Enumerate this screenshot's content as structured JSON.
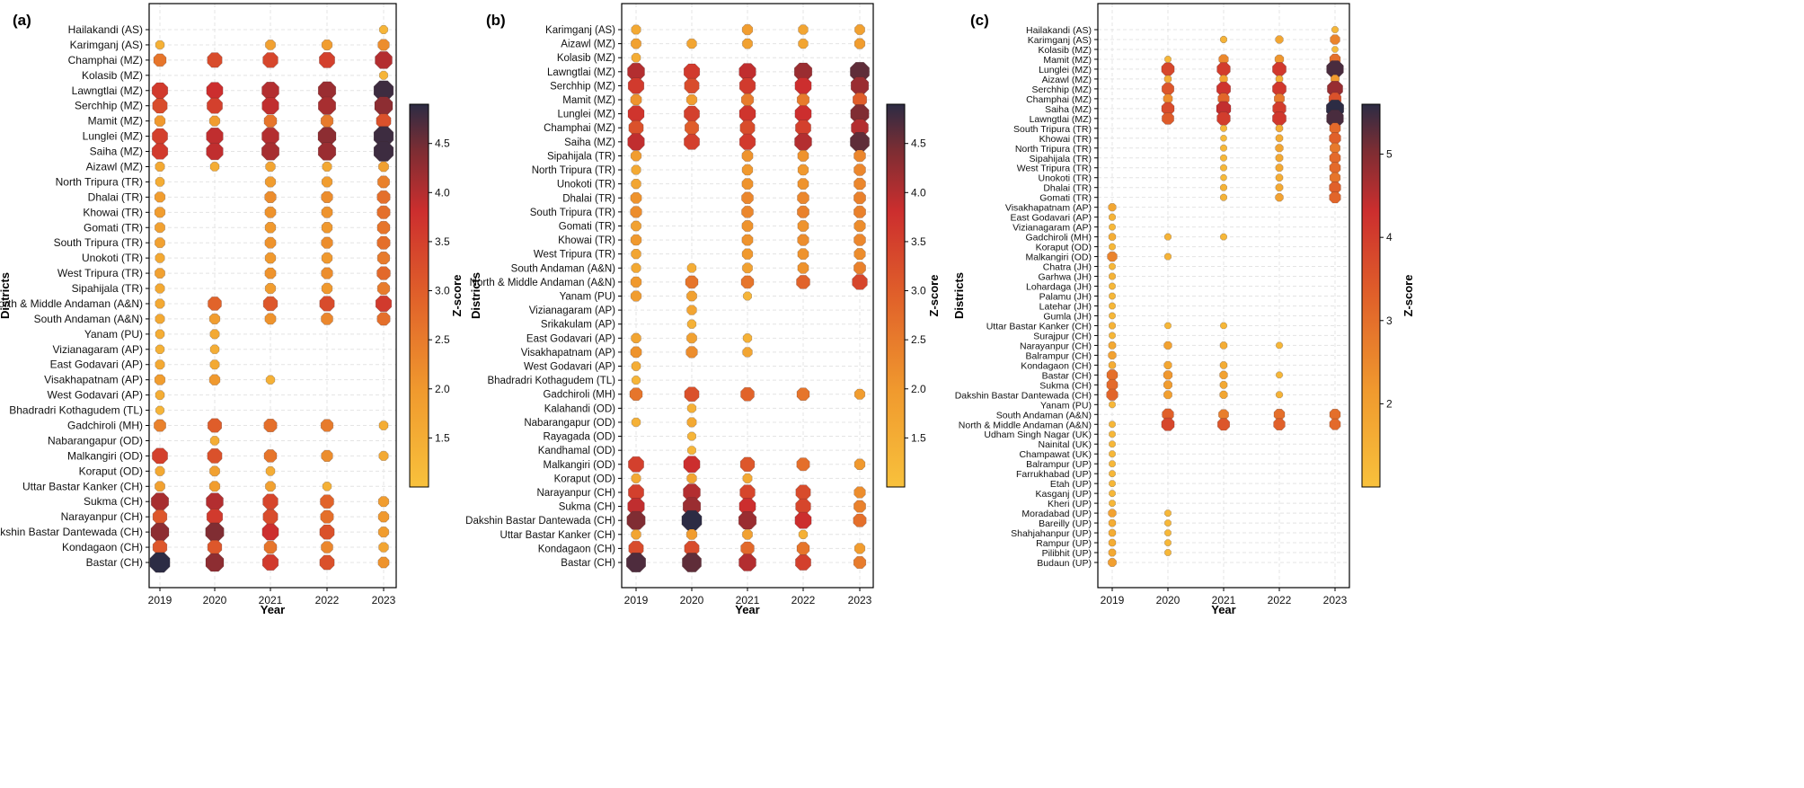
{
  "chart_data": [
    {
      "type": "scatter",
      "panel_label": "(a)",
      "xlabel": "Year",
      "ylabel": "Districts",
      "colorbar_label": "Z-score",
      "x": [
        "2019",
        "2020",
        "2021",
        "2022",
        "2023"
      ],
      "color_range": [
        1.0,
        4.9
      ],
      "colorbar_ticks": [
        "1.5",
        "2.0",
        "2.5",
        "3.0",
        "3.5",
        "4.0",
        "4.5"
      ],
      "districts": [
        "Hailakandi (AS)",
        "Karimganj (AS)",
        "Champhai (MZ)",
        "Kolasib (MZ)",
        "Lawngtlai (MZ)",
        "Serchhip (MZ)",
        "Mamit (MZ)",
        "Lunglei (MZ)",
        "Saiha (MZ)",
        "Aizawl (MZ)",
        "North Tripura (TR)",
        "Dhalai (TR)",
        "Khowai (TR)",
        "Gomati (TR)",
        "South Tripura (TR)",
        "Unokoti (TR)",
        "West Tripura (TR)",
        "Sipahijala (TR)",
        "North  & Middle Andaman (A&N)",
        "South Andaman (A&N)",
        "Yanam (PU)",
        "Vizianagaram (AP)",
        "East Godavari (AP)",
        "Visakhapatnam (AP)",
        "West Godavari (AP)",
        "Bhadradri Kothagudem (TL)",
        "Gadchiroli (MH)",
        "Nabarangapur (OD)",
        "Malkangiri (OD)",
        "Koraput (OD)",
        "Uttar Bastar Kanker (CH)",
        "Sukma (CH)",
        "Narayanpur (CH)",
        "Dakshin Bastar Dantewada (CH)",
        "Kondagaon (CH)",
        "Bastar (CH)"
      ],
      "z": [
        [
          null,
          null,
          null,
          null,
          1.3
        ],
        [
          1.4,
          null,
          1.8,
          1.9,
          2.2
        ],
        [
          2.6,
          3.3,
          3.4,
          3.5,
          4.0
        ],
        [
          null,
          null,
          null,
          null,
          1.3
        ],
        [
          3.6,
          3.8,
          4.0,
          4.2,
          4.8
        ],
        [
          3.3,
          3.5,
          3.9,
          4.1,
          4.3
        ],
        [
          2.0,
          1.9,
          2.6,
          2.5,
          3.2
        ],
        [
          3.5,
          3.9,
          4.0,
          4.3,
          4.8
        ],
        [
          3.6,
          3.9,
          4.1,
          4.2,
          4.8
        ],
        [
          1.6,
          1.5,
          1.7,
          1.6,
          1.8
        ],
        [
          1.5,
          null,
          1.9,
          1.9,
          2.4
        ],
        [
          1.9,
          null,
          2.2,
          2.2,
          2.7
        ],
        [
          1.9,
          null,
          2.1,
          2.1,
          2.7
        ],
        [
          1.8,
          null,
          2.0,
          2.0,
          2.6
        ],
        [
          1.8,
          null,
          2.1,
          2.2,
          2.7
        ],
        [
          1.6,
          null,
          2.0,
          2.0,
          2.5
        ],
        [
          1.8,
          null,
          2.1,
          2.2,
          2.8
        ],
        [
          1.6,
          null,
          1.9,
          2.0,
          2.5
        ],
        [
          1.6,
          2.9,
          3.1,
          3.3,
          3.6
        ],
        [
          1.6,
          1.9,
          2.1,
          2.3,
          2.7
        ],
        [
          1.5,
          1.6,
          null,
          null,
          null
        ],
        [
          1.4,
          1.5,
          null,
          null,
          null
        ],
        [
          1.6,
          1.6,
          null,
          null,
          null
        ],
        [
          1.9,
          2.0,
          1.4,
          null,
          null
        ],
        [
          1.5,
          null,
          null,
          null,
          null
        ],
        [
          1.3,
          null,
          null,
          null,
          null
        ],
        [
          2.4,
          3.0,
          2.7,
          2.5,
          1.5
        ],
        [
          null,
          1.5,
          null,
          null,
          null
        ],
        [
          3.5,
          3.2,
          2.6,
          2.2,
          1.6
        ],
        [
          1.6,
          1.8,
          1.5,
          null,
          null
        ],
        [
          1.8,
          1.9,
          1.8,
          1.4,
          null
        ],
        [
          4.1,
          4.0,
          3.4,
          2.9,
          1.9
        ],
        [
          3.1,
          3.6,
          3.3,
          2.7,
          2.0
        ],
        [
          4.3,
          4.4,
          3.8,
          3.2,
          1.9
        ],
        [
          3.1,
          3.1,
          2.6,
          2.3,
          1.7
        ],
        [
          4.9,
          4.3,
          3.6,
          3.2,
          2.1
        ]
      ]
    },
    {
      "type": "scatter",
      "panel_label": "(b)",
      "xlabel": "Year",
      "ylabel": "Districts",
      "colorbar_label": "Z-score",
      "x": [
        "2019",
        "2020",
        "2021",
        "2022",
        "2023"
      ],
      "color_range": [
        1.0,
        4.9
      ],
      "colorbar_ticks": [
        "1.5",
        "2.0",
        "2.5",
        "3.0",
        "3.5",
        "4.0",
        "4.5"
      ],
      "districts": [
        "Karimganj (AS)",
        "Aizawl (MZ)",
        "Kolasib (MZ)",
        "Lawngtlai (MZ)",
        "Serchhip (MZ)",
        "Mamit (MZ)",
        "Lunglei (MZ)",
        "Champhai (MZ)",
        "Saiha (MZ)",
        "Sipahijala (TR)",
        "North Tripura (TR)",
        "Unokoti (TR)",
        "Dhalai (TR)",
        "South Tripura (TR)",
        "Gomati (TR)",
        "Khowai (TR)",
        "West Tripura (TR)",
        "South Andaman (A&N)",
        "North  & Middle Andaman (A&N)",
        "Yanam (PU)",
        "Vizianagaram (AP)",
        "Srikakulam (AP)",
        "East Godavari (AP)",
        "Visakhapatnam (AP)",
        "West Godavari (AP)",
        "Bhadradri Kothagudem (TL)",
        "Gadchiroli (MH)",
        "Kalahandi (OD)",
        "Nabarangapur (OD)",
        "Rayagada (OD)",
        "Kandhamal (OD)",
        "Malkangiri (OD)",
        "Koraput (OD)",
        "Narayanpur (CH)",
        "Sukma (CH)",
        "Dakshin Bastar Dantewada (CH)",
        "Uttar Bastar Kanker (CH)",
        "Kondagaon (CH)",
        "Bastar (CH)"
      ],
      "z": [
        [
          1.6,
          null,
          1.9,
          1.7,
          1.8
        ],
        [
          1.8,
          1.7,
          1.8,
          1.7,
          1.9
        ],
        [
          1.5,
          null,
          null,
          null,
          null
        ],
        [
          4.0,
          3.6,
          3.9,
          4.2,
          4.6
        ],
        [
          3.6,
          3.3,
          3.6,
          3.8,
          4.2
        ],
        [
          2.1,
          1.9,
          2.5,
          2.5,
          3.0
        ],
        [
          3.7,
          3.5,
          3.7,
          3.8,
          4.4
        ],
        [
          3.2,
          3.0,
          3.3,
          3.5,
          4.0
        ],
        [
          3.9,
          3.5,
          3.6,
          4.0,
          4.6
        ],
        [
          1.9,
          null,
          2.1,
          2.1,
          2.3
        ],
        [
          1.6,
          null,
          2.0,
          2.0,
          2.3
        ],
        [
          1.7,
          null,
          2.1,
          2.1,
          2.3
        ],
        [
          2.1,
          null,
          2.3,
          2.3,
          2.4
        ],
        [
          2.2,
          null,
          2.3,
          2.4,
          2.4
        ],
        [
          1.8,
          null,
          2.1,
          2.1,
          2.2
        ],
        [
          2.0,
          null,
          2.1,
          2.2,
          2.3
        ],
        [
          1.7,
          null,
          2.0,
          2.1,
          2.2
        ],
        [
          1.6,
          1.5,
          1.8,
          2.1,
          2.4
        ],
        [
          2.0,
          2.6,
          2.6,
          2.9,
          3.4
        ],
        [
          1.9,
          1.8,
          1.3,
          null,
          null
        ],
        [
          null,
          1.7,
          null,
          null,
          null
        ],
        [
          null,
          1.4,
          null,
          null,
          null
        ],
        [
          1.7,
          1.8,
          1.4,
          null,
          null
        ],
        [
          2.1,
          2.2,
          1.7,
          null,
          null
        ],
        [
          1.5,
          null,
          null,
          null,
          null
        ],
        [
          1.3,
          null,
          null,
          null,
          null
        ],
        [
          2.6,
          3.2,
          2.9,
          2.6,
          1.9
        ],
        [
          null,
          1.4,
          null,
          null,
          null
        ],
        [
          1.4,
          1.6,
          null,
          null,
          null
        ],
        [
          null,
          1.3,
          null,
          null,
          null
        ],
        [
          null,
          1.3,
          null,
          null,
          null
        ],
        [
          3.5,
          3.8,
          3.1,
          2.7,
          2.0
        ],
        [
          1.6,
          1.7,
          1.6,
          null,
          null
        ],
        [
          3.5,
          4.0,
          3.4,
          3.3,
          2.2
        ],
        [
          3.9,
          4.2,
          3.8,
          3.4,
          2.4
        ],
        [
          4.4,
          4.9,
          4.2,
          3.8,
          2.7
        ],
        [
          1.7,
          1.9,
          1.8,
          1.4,
          null
        ],
        [
          3.3,
          3.3,
          2.8,
          2.6,
          1.9
        ],
        [
          4.7,
          4.6,
          4.0,
          3.5,
          2.5
        ]
      ]
    },
    {
      "type": "scatter",
      "panel_label": "(c)",
      "xlabel": "Year",
      "ylabel": "Districts",
      "colorbar_label": "Z-score",
      "x": [
        "2019",
        "2020",
        "2021",
        "2022",
        "2023"
      ],
      "color_range": [
        1.0,
        5.6
      ],
      "colorbar_ticks": [
        "2",
        "3",
        "4",
        "5"
      ],
      "districts": [
        "Hailakandi (AS)",
        "Karimganj (AS)",
        "Kolasib (MZ)",
        "Mamit (MZ)",
        "Lunglei (MZ)",
        "Aizawl (MZ)",
        "Serchhip (MZ)",
        "Champhai (MZ)",
        "Saiha (MZ)",
        "Lawngtlai (MZ)",
        "South Tripura (TR)",
        "Khowai (TR)",
        "North Tripura (TR)",
        "Sipahijala (TR)",
        "West Tripura (TR)",
        "Unokoti (TR)",
        "Dhalai (TR)",
        "Gomati (TR)",
        "Visakhapatnam (AP)",
        "East Godavari (AP)",
        "Vizianagaram (AP)",
        "Gadchiroli (MH)",
        "Koraput (OD)",
        "Malkangiri (OD)",
        "Chatra (JH)",
        "Garhwa (JH)",
        "Lohardaga (JH)",
        "Palamu (JH)",
        "Latehar (JH)",
        "Gumla (JH)",
        "Uttar Bastar Kanker (CH)",
        "Surajpur (CH)",
        "Narayanpur (CH)",
        "Balrampur (CH)",
        "Kondagaon (CH)",
        "Bastar (CH)",
        "Sukma (CH)",
        "Dakshin Bastar Dantewada (CH)",
        "Yanam (PU)",
        "South Andaman (A&N)",
        "North  & Middle Andaman (A&N)",
        "Udham Singh Nagar (UK)",
        "Nainital (UK)",
        "Champawat (UK)",
        "Balrampur (UP)",
        "Farrukhabad (UP)",
        "Etah (UP)",
        "Kasganj (UP)",
        "Kheri (UP)",
        "Moradabad (UP)",
        "Bareilly (UP)",
        "Shahjahanpur (UP)",
        "Rampur (UP)",
        "Pilibhit (UP)",
        "Budaun (UP)"
      ],
      "z": [
        [
          null,
          null,
          null,
          null,
          1.3
        ],
        [
          null,
          null,
          1.4,
          1.8,
          2.6
        ],
        [
          null,
          null,
          null,
          null,
          1.2
        ],
        [
          null,
          1.3,
          2.5,
          2.2,
          3.0
        ],
        [
          null,
          3.8,
          4.0,
          4.1,
          5.4
        ],
        [
          null,
          1.6,
          1.9,
          1.6,
          2.1
        ],
        [
          null,
          3.5,
          4.2,
          4.1,
          4.8
        ],
        [
          null,
          2.4,
          3.2,
          2.8,
          3.6
        ],
        [
          null,
          3.7,
          4.4,
          4.0,
          5.6
        ],
        [
          null,
          3.4,
          4.0,
          4.1,
          5.4
        ],
        [
          null,
          null,
          1.3,
          1.6,
          3.1
        ],
        [
          null,
          null,
          1.2,
          1.6,
          3.3
        ],
        [
          null,
          null,
          1.3,
          1.8,
          2.8
        ],
        [
          null,
          null,
          1.3,
          1.7,
          3.1
        ],
        [
          null,
          null,
          1.3,
          1.7,
          3.1
        ],
        [
          null,
          null,
          1.2,
          1.6,
          2.9
        ],
        [
          null,
          null,
          1.4,
          1.7,
          3.3
        ],
        [
          null,
          null,
          1.4,
          1.9,
          3.2
        ],
        [
          1.8,
          null,
          null,
          null,
          null
        ],
        [
          1.4,
          null,
          null,
          null,
          null
        ],
        [
          1.3,
          null,
          null,
          null,
          null
        ],
        [
          1.6,
          1.4,
          1.3,
          null,
          null
        ],
        [
          1.3,
          null,
          null,
          null,
          null
        ],
        [
          2.6,
          1.4,
          null,
          null,
          null
        ],
        [
          1.3,
          null,
          null,
          null,
          null
        ],
        [
          1.4,
          null,
          null,
          null,
          null
        ],
        [
          1.3,
          null,
          null,
          null,
          null
        ],
        [
          1.3,
          null,
          null,
          null,
          null
        ],
        [
          1.3,
          null,
          null,
          null,
          null
        ],
        [
          1.3,
          null,
          null,
          null,
          null
        ],
        [
          1.4,
          1.3,
          1.3,
          null,
          null
        ],
        [
          1.3,
          null,
          null,
          null,
          null
        ],
        [
          1.7,
          1.9,
          1.6,
          1.3,
          null
        ],
        [
          1.9,
          null,
          null,
          null,
          null
        ],
        [
          1.6,
          1.8,
          1.6,
          null,
          null
        ],
        [
          3.0,
          2.2,
          1.9,
          1.3,
          null
        ],
        [
          3.1,
          2.1,
          1.7,
          null,
          null
        ],
        [
          3.2,
          2.0,
          1.8,
          1.4,
          null
        ],
        [
          1.3,
          null,
          null,
          null,
          null
        ],
        [
          null,
          3.3,
          2.7,
          3.0,
          3.0
        ],
        [
          1.3,
          3.8,
          3.5,
          3.3,
          3.1
        ],
        [
          1.3,
          null,
          null,
          null,
          null
        ],
        [
          1.3,
          null,
          null,
          null,
          null
        ],
        [
          1.3,
          null,
          null,
          null,
          null
        ],
        [
          1.3,
          null,
          null,
          null,
          null
        ],
        [
          1.3,
          null,
          null,
          null,
          null
        ],
        [
          1.3,
          null,
          null,
          null,
          null
        ],
        [
          1.3,
          null,
          null,
          null,
          null
        ],
        [
          1.3,
          null,
          null,
          null,
          null
        ],
        [
          1.9,
          1.3,
          null,
          null,
          null
        ],
        [
          1.6,
          1.3,
          null,
          null,
          null
        ],
        [
          1.6,
          1.3,
          null,
          null,
          null
        ],
        [
          1.6,
          1.3,
          null,
          null,
          null
        ],
        [
          1.7,
          1.3,
          null,
          null,
          null
        ],
        [
          2.0,
          null,
          null,
          null,
          null
        ]
      ]
    }
  ]
}
